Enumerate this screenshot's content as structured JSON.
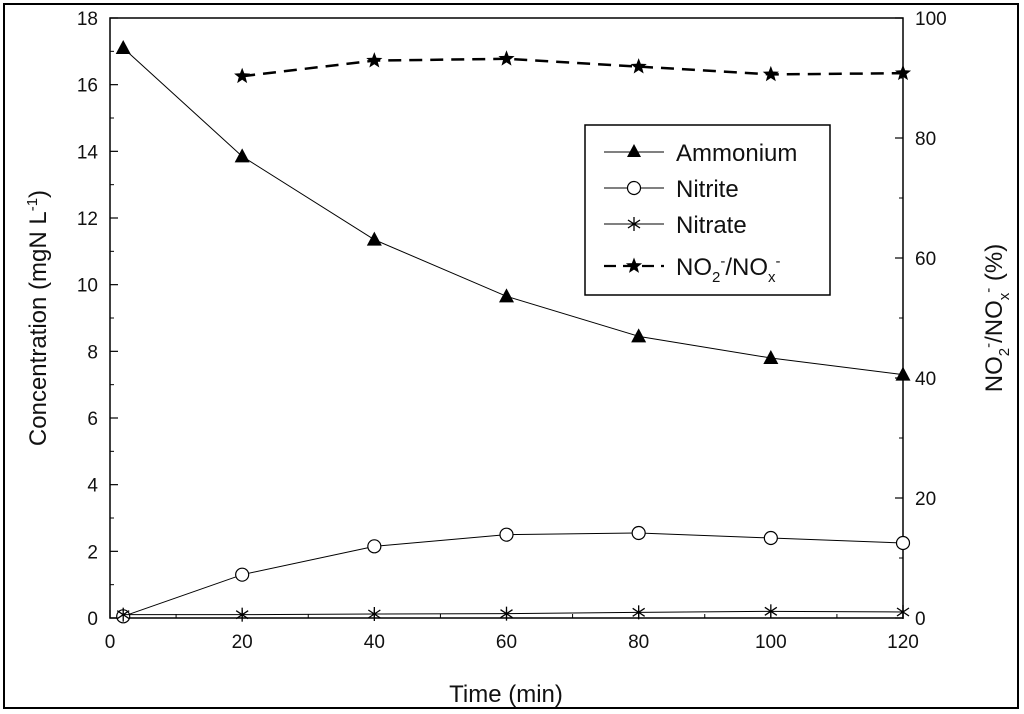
{
  "chart_data": {
    "type": "line",
    "title": "",
    "xlabel": "Time (min)",
    "ylabel_left": {
      "main": "Concentration (mgN L",
      "sup": "-1",
      "close": ")"
    },
    "ylabel_right": {
      "p1": "NO",
      "sub1": "2",
      "sup1": "-",
      "p2": "/NO",
      "sub2": "x",
      "sup2": "-",
      "p3": " (%)"
    },
    "xlim": [
      0,
      120
    ],
    "ylim_left": [
      0,
      18
    ],
    "ylim_right": [
      0,
      100
    ],
    "x_ticks": [
      "0",
      "20",
      "40",
      "60",
      "80",
      "100",
      "120"
    ],
    "y_left_ticks": [
      "0",
      "2",
      "4",
      "6",
      "8",
      "10",
      "12",
      "14",
      "16",
      "18"
    ],
    "y_right_ticks": [
      "0",
      "20",
      "40",
      "60",
      "80",
      "100"
    ],
    "legend_position": "upper-right",
    "series": [
      {
        "name": "Ammonium",
        "axis": "left",
        "marker": "triangle",
        "line": "solid",
        "x": [
          2,
          20,
          40,
          60,
          80,
          100,
          120
        ],
        "y": [
          17.1,
          13.85,
          11.35,
          9.65,
          8.45,
          7.8,
          7.3
        ]
      },
      {
        "name": "Nitrite",
        "axis": "left",
        "marker": "circle-open",
        "line": "solid",
        "x": [
          2,
          20,
          40,
          60,
          80,
          100,
          120
        ],
        "y": [
          0.05,
          1.3,
          2.15,
          2.5,
          2.55,
          2.4,
          2.25
        ]
      },
      {
        "name": "Nitrate",
        "axis": "left",
        "marker": "asterisk",
        "line": "solid",
        "x": [
          2,
          20,
          40,
          60,
          80,
          100,
          120
        ],
        "y": [
          0.1,
          0.1,
          0.12,
          0.13,
          0.17,
          0.2,
          0.18
        ]
      },
      {
        "name": "NO2-/NOx-",
        "axis": "right",
        "marker": "star",
        "line": "dashed",
        "x": [
          20,
          40,
          60,
          80,
          100,
          120
        ],
        "y": [
          90.3,
          92.9,
          93.2,
          91.9,
          90.6,
          90.8
        ]
      }
    ],
    "legend": [
      {
        "label": "Ammonium"
      },
      {
        "label": "Nitrite"
      },
      {
        "label": "Nitrate"
      },
      {
        "label_parts": [
          "NO",
          "2",
          "-",
          "/NO",
          "x",
          "-"
        ]
      }
    ]
  }
}
